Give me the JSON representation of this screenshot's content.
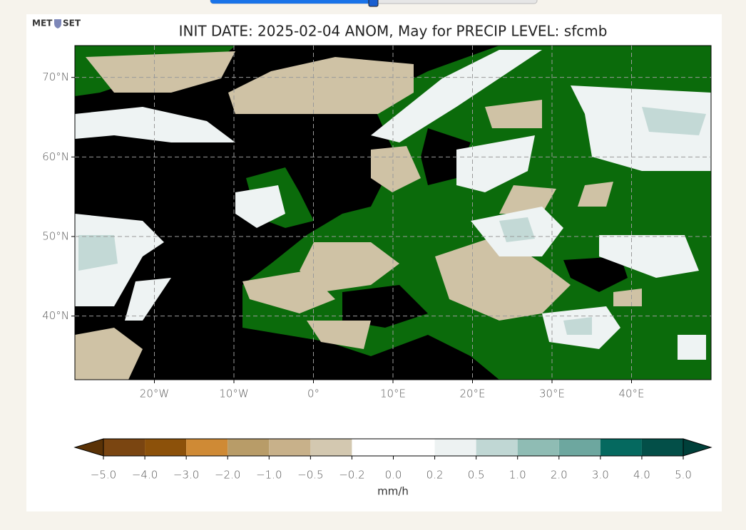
{
  "header": {
    "logo_left": "MET",
    "logo_right": "SET"
  },
  "chart_data": {
    "type": "map",
    "title": "INIT DATE: 2025-02-04 ANOM, May for PRECIP LEVEL: sfcmb",
    "xlim": [
      -30,
      50
    ],
    "ylim": [
      32,
      74
    ],
    "xticks": [
      {
        "value": -20,
        "label": "20°W"
      },
      {
        "value": -10,
        "label": "10°W"
      },
      {
        "value": 0,
        "label": "0°"
      },
      {
        "value": 10,
        "label": "10°E"
      },
      {
        "value": 20,
        "label": "20°E"
      },
      {
        "value": 30,
        "label": "30°E"
      },
      {
        "value": 40,
        "label": "40°E"
      }
    ],
    "yticks": [
      {
        "value": 40,
        "label": "40°N"
      },
      {
        "value": 50,
        "label": "50°N"
      },
      {
        "value": 60,
        "label": "60°N"
      },
      {
        "value": 70,
        "label": "70°N"
      }
    ],
    "grid": true,
    "colorbar": {
      "levels": [
        {
          "value": -5,
          "label": "−5.0"
        },
        {
          "value": -4,
          "label": "−4.0"
        },
        {
          "value": -3,
          "label": "−3.0"
        },
        {
          "value": -2,
          "label": "−2.0"
        },
        {
          "value": -1,
          "label": "−1.0"
        },
        {
          "value": -0.5,
          "label": "−0.5"
        },
        {
          "value": -0.2,
          "label": "−0.2"
        },
        {
          "value": 0,
          "label": "0.0"
        },
        {
          "value": 0.2,
          "label": "0.2"
        },
        {
          "value": 0.5,
          "label": "0.5"
        },
        {
          "value": 1,
          "label": "1.0"
        },
        {
          "value": 2,
          "label": "2.0"
        },
        {
          "value": 3,
          "label": "3.0"
        },
        {
          "value": 4,
          "label": "4.0"
        },
        {
          "value": 5,
          "label": "5.0"
        }
      ],
      "colors": [
        "#7a4511",
        "#8c510a",
        "#cf8a35",
        "#b89c68",
        "#c8b18a",
        "#d3c8b0",
        "#ffffff",
        "#ffffff",
        "#edf2f2",
        "#c0d7d4",
        "#8fbcb4",
        "#6da79f",
        "#05695f",
        "#034f48"
      ],
      "extend_colors": [
        "#5a3206",
        "#00403a"
      ],
      "label": "mm/h"
    }
  }
}
